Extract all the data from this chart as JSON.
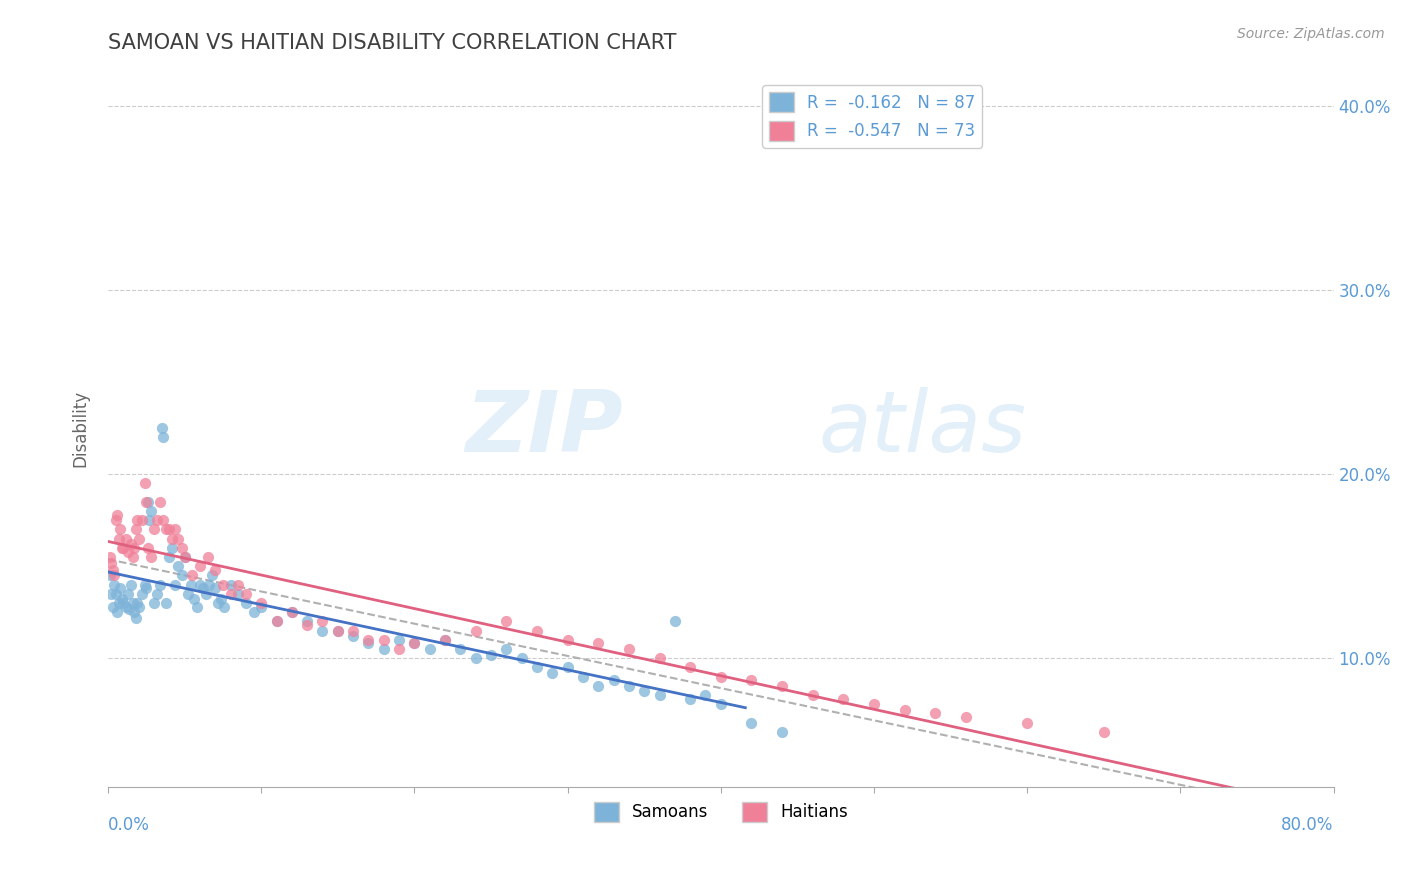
{
  "title": "SAMOAN VS HAITIAN DISABILITY CORRELATION CHART",
  "source": "Source: ZipAtlas.com",
  "ylabel": "Disability",
  "xmin": 0.0,
  "xmax": 0.8,
  "ymin": 0.03,
  "ymax": 0.42,
  "ytick_vals": [
    0.1,
    0.2,
    0.3,
    0.4
  ],
  "ytick_labels": [
    "10.0%",
    "20.0%",
    "30.0%",
    "40.0%"
  ],
  "legend_r1": "R =  -0.162   N = 87",
  "legend_r2": "R =  -0.547   N = 73",
  "samoan_color": "#7db3d8",
  "haitian_color": "#f08098",
  "samoan_line_color": "#4472c4",
  "haitian_line_color": "#e06080",
  "trend_line_color": "#b0b0b0",
  "background_color": "#ffffff",
  "grid_color": "#cccccc",
  "title_color": "#404040",
  "axis_label_color": "#5b9bd5",
  "watermark_zip": "ZIP",
  "watermark_atlas": "atlas",
  "samoan_data": [
    [
      0.001,
      0.145
    ],
    [
      0.002,
      0.135
    ],
    [
      0.003,
      0.128
    ],
    [
      0.004,
      0.14
    ],
    [
      0.005,
      0.135
    ],
    [
      0.006,
      0.125
    ],
    [
      0.007,
      0.13
    ],
    [
      0.008,
      0.138
    ],
    [
      0.009,
      0.132
    ],
    [
      0.01,
      0.13
    ],
    [
      0.012,
      0.128
    ],
    [
      0.013,
      0.135
    ],
    [
      0.014,
      0.127
    ],
    [
      0.015,
      0.14
    ],
    [
      0.016,
      0.13
    ],
    [
      0.017,
      0.125
    ],
    [
      0.018,
      0.122
    ],
    [
      0.019,
      0.13
    ],
    [
      0.02,
      0.128
    ],
    [
      0.022,
      0.135
    ],
    [
      0.024,
      0.14
    ],
    [
      0.025,
      0.138
    ],
    [
      0.026,
      0.185
    ],
    [
      0.027,
      0.175
    ],
    [
      0.028,
      0.18
    ],
    [
      0.03,
      0.13
    ],
    [
      0.032,
      0.135
    ],
    [
      0.034,
      0.14
    ],
    [
      0.035,
      0.225
    ],
    [
      0.036,
      0.22
    ],
    [
      0.038,
      0.13
    ],
    [
      0.04,
      0.155
    ],
    [
      0.042,
      0.16
    ],
    [
      0.044,
      0.14
    ],
    [
      0.046,
      0.15
    ],
    [
      0.048,
      0.145
    ],
    [
      0.05,
      0.155
    ],
    [
      0.052,
      0.135
    ],
    [
      0.054,
      0.14
    ],
    [
      0.056,
      0.132
    ],
    [
      0.058,
      0.128
    ],
    [
      0.06,
      0.14
    ],
    [
      0.062,
      0.138
    ],
    [
      0.064,
      0.135
    ],
    [
      0.066,
      0.14
    ],
    [
      0.068,
      0.145
    ],
    [
      0.07,
      0.138
    ],
    [
      0.072,
      0.13
    ],
    [
      0.074,
      0.132
    ],
    [
      0.076,
      0.128
    ],
    [
      0.08,
      0.14
    ],
    [
      0.085,
      0.135
    ],
    [
      0.09,
      0.13
    ],
    [
      0.095,
      0.125
    ],
    [
      0.1,
      0.128
    ],
    [
      0.11,
      0.12
    ],
    [
      0.12,
      0.125
    ],
    [
      0.13,
      0.12
    ],
    [
      0.14,
      0.115
    ],
    [
      0.15,
      0.115
    ],
    [
      0.16,
      0.112
    ],
    [
      0.17,
      0.108
    ],
    [
      0.18,
      0.105
    ],
    [
      0.19,
      0.11
    ],
    [
      0.2,
      0.108
    ],
    [
      0.21,
      0.105
    ],
    [
      0.22,
      0.11
    ],
    [
      0.23,
      0.105
    ],
    [
      0.24,
      0.1
    ],
    [
      0.25,
      0.102
    ],
    [
      0.26,
      0.105
    ],
    [
      0.27,
      0.1
    ],
    [
      0.28,
      0.095
    ],
    [
      0.29,
      0.092
    ],
    [
      0.3,
      0.095
    ],
    [
      0.31,
      0.09
    ],
    [
      0.32,
      0.085
    ],
    [
      0.33,
      0.088
    ],
    [
      0.34,
      0.085
    ],
    [
      0.35,
      0.082
    ],
    [
      0.36,
      0.08
    ],
    [
      0.37,
      0.12
    ],
    [
      0.38,
      0.078
    ],
    [
      0.39,
      0.08
    ],
    [
      0.4,
      0.075
    ],
    [
      0.42,
      0.065
    ],
    [
      0.44,
      0.06
    ]
  ],
  "haitian_data": [
    [
      0.001,
      0.155
    ],
    [
      0.002,
      0.152
    ],
    [
      0.003,
      0.148
    ],
    [
      0.004,
      0.145
    ],
    [
      0.005,
      0.175
    ],
    [
      0.006,
      0.178
    ],
    [
      0.007,
      0.165
    ],
    [
      0.008,
      0.17
    ],
    [
      0.009,
      0.16
    ],
    [
      0.01,
      0.16
    ],
    [
      0.012,
      0.165
    ],
    [
      0.013,
      0.158
    ],
    [
      0.015,
      0.162
    ],
    [
      0.016,
      0.155
    ],
    [
      0.017,
      0.16
    ],
    [
      0.018,
      0.17
    ],
    [
      0.019,
      0.175
    ],
    [
      0.02,
      0.165
    ],
    [
      0.022,
      0.175
    ],
    [
      0.024,
      0.195
    ],
    [
      0.025,
      0.185
    ],
    [
      0.026,
      0.16
    ],
    [
      0.028,
      0.155
    ],
    [
      0.03,
      0.17
    ],
    [
      0.032,
      0.175
    ],
    [
      0.034,
      0.185
    ],
    [
      0.036,
      0.175
    ],
    [
      0.038,
      0.17
    ],
    [
      0.04,
      0.17
    ],
    [
      0.042,
      0.165
    ],
    [
      0.044,
      0.17
    ],
    [
      0.046,
      0.165
    ],
    [
      0.048,
      0.16
    ],
    [
      0.05,
      0.155
    ],
    [
      0.055,
      0.145
    ],
    [
      0.06,
      0.15
    ],
    [
      0.065,
      0.155
    ],
    [
      0.07,
      0.148
    ],
    [
      0.075,
      0.14
    ],
    [
      0.08,
      0.135
    ],
    [
      0.085,
      0.14
    ],
    [
      0.09,
      0.135
    ],
    [
      0.1,
      0.13
    ],
    [
      0.11,
      0.12
    ],
    [
      0.12,
      0.125
    ],
    [
      0.13,
      0.118
    ],
    [
      0.14,
      0.12
    ],
    [
      0.15,
      0.115
    ],
    [
      0.16,
      0.115
    ],
    [
      0.17,
      0.11
    ],
    [
      0.18,
      0.11
    ],
    [
      0.19,
      0.105
    ],
    [
      0.2,
      0.108
    ],
    [
      0.22,
      0.11
    ],
    [
      0.24,
      0.115
    ],
    [
      0.26,
      0.12
    ],
    [
      0.28,
      0.115
    ],
    [
      0.3,
      0.11
    ],
    [
      0.32,
      0.108
    ],
    [
      0.34,
      0.105
    ],
    [
      0.36,
      0.1
    ],
    [
      0.38,
      0.095
    ],
    [
      0.4,
      0.09
    ],
    [
      0.42,
      0.088
    ],
    [
      0.44,
      0.085
    ],
    [
      0.46,
      0.08
    ],
    [
      0.48,
      0.078
    ],
    [
      0.5,
      0.075
    ],
    [
      0.52,
      0.072
    ],
    [
      0.54,
      0.07
    ],
    [
      0.56,
      0.068
    ],
    [
      0.6,
      0.065
    ],
    [
      0.65,
      0.06
    ]
  ]
}
